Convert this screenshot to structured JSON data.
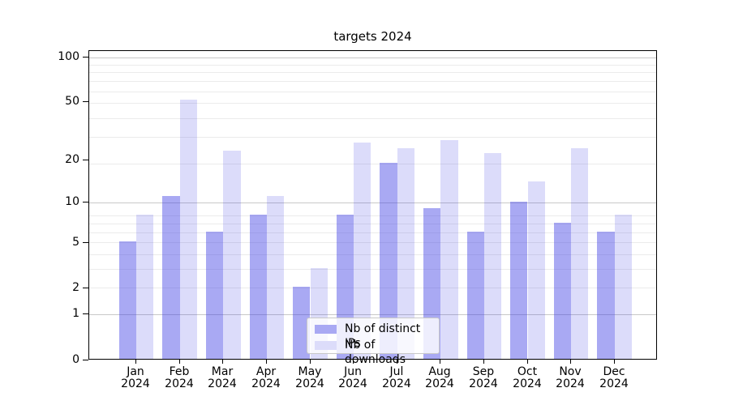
{
  "chart_data": {
    "type": "bar",
    "title": "targets 2024",
    "categories": [
      "Jan",
      "Feb",
      "Mar",
      "Apr",
      "May",
      "Jun",
      "Jul",
      "Aug",
      "Sep",
      "Oct",
      "Nov",
      "Dec"
    ],
    "year_label": "2024",
    "series": [
      {
        "name": "Nb of distinct IPs",
        "color": "#a9a9f3",
        "values": [
          5,
          11,
          6,
          8,
          2,
          8,
          19,
          9,
          6,
          10,
          7,
          6
        ]
      },
      {
        "name": "Nb of downloads",
        "color": "#dcdcfa",
        "values": [
          8,
          51,
          23,
          11,
          3,
          26,
          24,
          27,
          22,
          14,
          24,
          8
        ]
      }
    ],
    "yticks": [
      0,
      1,
      2,
      5,
      10,
      20,
      50,
      100
    ],
    "ylim": [
      0,
      110
    ],
    "yscale": "log1p",
    "grid": "horizontal",
    "grid_major_values": [
      1,
      10,
      100
    ],
    "grid_minor_values": [
      2,
      3,
      4,
      5,
      6,
      7,
      8,
      19,
      29,
      39,
      49,
      59,
      69,
      79,
      89
    ],
    "legend_position": "lower center",
    "colors": {
      "bar_ips": "#a9a9f3",
      "bar_downloads": "#dcdcfa",
      "grid_major": "#c8c8c8",
      "grid_minor": "#ebebeb",
      "axis": "#000000"
    }
  }
}
